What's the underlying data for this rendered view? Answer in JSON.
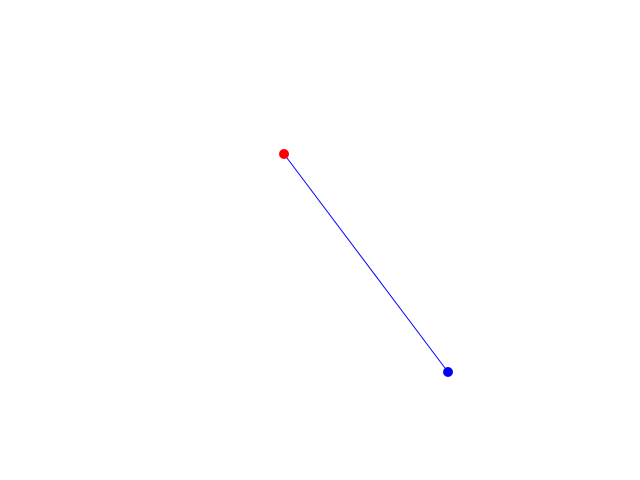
{
  "background_color": "#ffffff",
  "segment": {
    "line_color": "#0000ff",
    "start_point_color": "#ff0000",
    "end_point_color": "#0000ff"
  }
}
